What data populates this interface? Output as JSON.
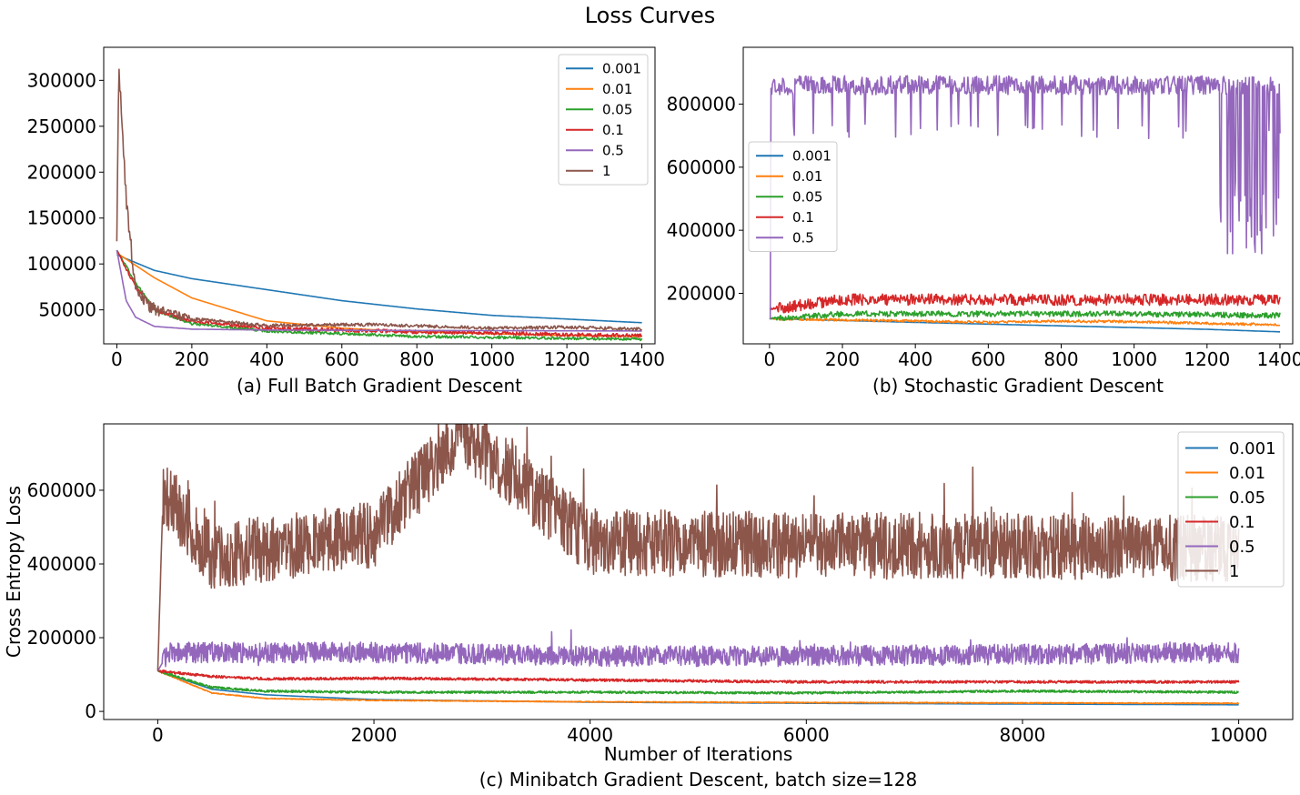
{
  "figure": {
    "title": "Loss Curves"
  },
  "colors": {
    "0.001": "#1f77b4",
    "0.01": "#ff7f0e",
    "0.05": "#2ca02c",
    "0.1": "#d62728",
    "0.5": "#9467bd",
    "1": "#8c564b"
  },
  "chart_data": [
    {
      "id": "a",
      "type": "line",
      "caption": "(a) Full Batch Gradient Descent",
      "xlabel": "",
      "ylabel": "",
      "xlim": [
        -35,
        1435
      ],
      "ylim": [
        13000,
        336000
      ],
      "xticks": [
        0,
        200,
        400,
        600,
        800,
        1000,
        1200,
        1400
      ],
      "yticks": [
        50000,
        100000,
        150000,
        200000,
        250000,
        300000
      ],
      "legend": "top-right",
      "grid": false,
      "series": [
        {
          "name": "0.001",
          "model": {
            "kind": "decay",
            "n": 1400,
            "start": 110000,
            "end": 36000,
            "tau": 900,
            "noise": 0
          },
          "points": [
            [
              0,
              110000
            ],
            [
              100,
              93000
            ],
            [
              200,
              84000
            ],
            [
              400,
              72000
            ],
            [
              600,
              60000
            ],
            [
              800,
              51000
            ],
            [
              1000,
              44000
            ],
            [
              1200,
              40000
            ],
            [
              1400,
              36000
            ]
          ]
        },
        {
          "name": "0.01",
          "model": {
            "kind": "decay",
            "n": 1400,
            "start": 112000,
            "end": 21000,
            "tau": 220,
            "noise": 0
          },
          "points": [
            [
              0,
              112000
            ],
            [
              100,
              85000
            ],
            [
              200,
              63000
            ],
            [
              400,
              38000
            ],
            [
              600,
              30000
            ],
            [
              800,
              26000
            ],
            [
              1000,
              24000
            ],
            [
              1200,
              22000
            ],
            [
              1400,
              21000
            ]
          ]
        },
        {
          "name": "0.05",
          "model": {
            "kind": "decay",
            "n": 1400,
            "start": 115000,
            "end": 18000,
            "tau": 80,
            "noise": 1500
          },
          "points": [
            [
              0,
              115000
            ],
            [
              50,
              80000
            ],
            [
              100,
              50000
            ],
            [
              200,
              35000
            ],
            [
              400,
              27000
            ],
            [
              600,
              24000
            ],
            [
              800,
              21000
            ],
            [
              1000,
              20000
            ],
            [
              1200,
              19000
            ],
            [
              1400,
              18000
            ]
          ]
        },
        {
          "name": "0.1",
          "model": {
            "kind": "decay",
            "n": 1400,
            "start": 115000,
            "end": 22000,
            "tau": 70,
            "noise": 2000
          },
          "points": [
            [
              0,
              115000
            ],
            [
              50,
              75000
            ],
            [
              100,
              50000
            ],
            [
              200,
              38000
            ],
            [
              400,
              30000
            ],
            [
              600,
              28000
            ],
            [
              800,
              26000
            ],
            [
              1000,
              25000
            ],
            [
              1200,
              23000
            ],
            [
              1400,
              22000
            ]
          ]
        },
        {
          "name": "0.5",
          "model": {
            "kind": "decay",
            "n": 1400,
            "start": 115000,
            "end": 27000,
            "tau": 25,
            "noise": 0
          },
          "points": [
            [
              0,
              115000
            ],
            [
              25,
              60000
            ],
            [
              50,
              42000
            ],
            [
              100,
              32000
            ],
            [
              200,
              29000
            ],
            [
              400,
              28000
            ],
            [
              800,
              27500
            ],
            [
              1400,
              27000
            ]
          ]
        },
        {
          "name": "1",
          "model": {
            "kind": "spikydecay",
            "n": 1400,
            "start": 115000,
            "peak": 322000,
            "end": 29000,
            "tau": 30,
            "noise": 7000
          },
          "points": [
            [
              0,
              115000
            ],
            [
              5,
              322000
            ],
            [
              15,
              240000
            ],
            [
              25,
              170000
            ],
            [
              50,
              70000
            ],
            [
              100,
              50000
            ],
            [
              200,
              40000
            ],
            [
              400,
              33000
            ],
            [
              680,
              34000
            ],
            [
              1000,
              30000
            ],
            [
              1200,
              31000
            ],
            [
              1400,
              29000
            ]
          ]
        }
      ]
    },
    {
      "id": "b",
      "type": "line",
      "caption": "(b) Stochastic Gradient Descent",
      "xlabel": "",
      "ylabel": "",
      "xlim": [
        -72,
        1435
      ],
      "ylim": [
        40000,
        980000
      ],
      "xticks": [
        0,
        200,
        400,
        600,
        800,
        1000,
        1200,
        1400
      ],
      "yticks": [
        200000,
        400000,
        600000,
        800000
      ],
      "legend": "center-left",
      "grid": false,
      "series": [
        {
          "name": "0.001",
          "model": {
            "kind": "linear",
            "n": 1400,
            "start": 120000,
            "end": 78000,
            "noise": 0
          },
          "points": [
            [
              0,
              120000
            ],
            [
              400,
              108000
            ],
            [
              800,
              97000
            ],
            [
              1200,
              86000
            ],
            [
              1400,
              78000
            ]
          ]
        },
        {
          "name": "0.01",
          "model": {
            "kind": "linear",
            "n": 1400,
            "start": 120000,
            "end": 100000,
            "noise": 4000
          },
          "points": [
            [
              0,
              120000
            ],
            [
              600,
              108000
            ],
            [
              800,
              112000
            ],
            [
              1000,
              110000
            ],
            [
              1400,
              100000
            ]
          ]
        },
        {
          "name": "0.05",
          "model": {
            "kind": "linear",
            "n": 1400,
            "start": 130000,
            "end": 130000,
            "noise": 9000
          },
          "points": [
            [
              0,
              120000
            ],
            [
              200,
              135000
            ],
            [
              600,
              135000
            ],
            [
              1000,
              135000
            ],
            [
              1400,
              130000
            ]
          ]
        },
        {
          "name": "0.1",
          "model": {
            "kind": "linear",
            "n": 1400,
            "start": 180000,
            "end": 180000,
            "noise": 18000
          },
          "points": [
            [
              0,
              150000
            ],
            [
              200,
              180000
            ],
            [
              600,
              180000
            ],
            [
              1000,
              180000
            ],
            [
              1400,
              180000
            ]
          ]
        },
        {
          "name": "0.5",
          "model": {
            "kind": "bimodal",
            "n": 1400,
            "base": 860000,
            "spread": 30000,
            "drop": 720000,
            "rate": 0.05,
            "lateDrop": 320000,
            "lateStart": 1230,
            "start": 120000
          },
          "points": [
            [
              0,
              120000
            ],
            [
              5,
              920000
            ],
            [
              100,
              860000
            ],
            [
              400,
              860000
            ],
            [
              800,
              860000
            ],
            [
              1100,
              860000
            ],
            [
              1300,
              330000
            ],
            [
              1400,
              820000
            ]
          ]
        }
      ]
    },
    {
      "id": "c",
      "type": "line",
      "caption": "(c) Minibatch Gradient Descent, batch size=128",
      "xlabel": "Number of Iterations",
      "ylabel": "Cross Entropy Loss",
      "xlim": [
        -500,
        10500
      ],
      "ylim": [
        -22000,
        780000
      ],
      "xticks": [
        0,
        2000,
        4000,
        6000,
        8000,
        10000
      ],
      "yticks": [
        0,
        200000,
        400000,
        600000
      ],
      "legend": "top-right",
      "grid": false,
      "series": [
        {
          "name": "0.001",
          "model": {
            "kind": "decay",
            "n": 10000,
            "start": 110000,
            "end": 18000,
            "tau": 900,
            "noise": 0
          },
          "points": [
            [
              0,
              110000
            ],
            [
              500,
              60000
            ],
            [
              1000,
              45000
            ],
            [
              2000,
              32000
            ],
            [
              4000,
              25000
            ],
            [
              6000,
              22000
            ],
            [
              8000,
              20000
            ],
            [
              10000,
              18000
            ]
          ]
        },
        {
          "name": "0.01",
          "model": {
            "kind": "decay",
            "n": 10000,
            "start": 110000,
            "end": 22000,
            "tau": 350,
            "noise": 1200
          },
          "points": [
            [
              0,
              110000
            ],
            [
              500,
              50000
            ],
            [
              1000,
              35000
            ],
            [
              2000,
              30000
            ],
            [
              4000,
              26000
            ],
            [
              6000,
              24000
            ],
            [
              8000,
              23000
            ],
            [
              10000,
              22000
            ]
          ]
        },
        {
          "name": "0.05",
          "model": {
            "kind": "decay",
            "n": 10000,
            "start": 110000,
            "end": 52000,
            "tau": 300,
            "noise": 3000
          },
          "points": [
            [
              0,
              110000
            ],
            [
              500,
              65000
            ],
            [
              1000,
              55000
            ],
            [
              2000,
              52000
            ],
            [
              4000,
              52000
            ],
            [
              6000,
              50000
            ],
            [
              8000,
              55000
            ],
            [
              10000,
              52000
            ]
          ]
        },
        {
          "name": "0.1",
          "model": {
            "kind": "decay",
            "n": 10000,
            "start": 110000,
            "end": 80000,
            "tau": 400,
            "noise": 3500
          },
          "points": [
            [
              0,
              110000
            ],
            [
              500,
              95000
            ],
            [
              1000,
              88000
            ],
            [
              2000,
              90000
            ],
            [
              4000,
              85000
            ],
            [
              6000,
              80000
            ],
            [
              8000,
              80000
            ],
            [
              10000,
              80000
            ]
          ]
        },
        {
          "name": "0.5",
          "model": {
            "kind": "noisy",
            "n": 10000,
            "start": 110000,
            "mean": 155000,
            "noise": 28000
          },
          "points": [
            [
              0,
              110000
            ],
            [
              100,
              160000
            ],
            [
              2000,
              160000
            ],
            [
              4000,
              150000
            ],
            [
              6000,
              150000
            ],
            [
              8000,
              155000
            ],
            [
              10000,
              160000
            ]
          ]
        },
        {
          "name": "1",
          "model": {
            "kind": "noisy",
            "n": 10000,
            "start": 110000,
            "mean": 450000,
            "noise": 90000
          },
          "points": [
            [
              0,
              110000
            ],
            [
              50,
              600000
            ],
            [
              500,
              420000
            ],
            [
              2000,
              480000
            ],
            [
              2800,
              760000
            ],
            [
              4000,
              460000
            ],
            [
              6000,
              450000
            ],
            [
              8000,
              450000
            ],
            [
              10000,
              440000
            ]
          ]
        }
      ]
    }
  ]
}
